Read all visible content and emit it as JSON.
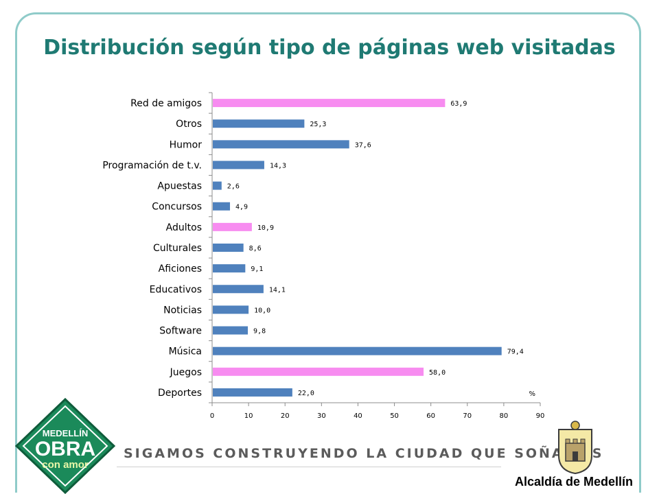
{
  "chart_data": {
    "type": "bar",
    "orientation": "horizontal",
    "title": "Distribución según tipo de páginas web visitadas",
    "categories": [
      "Red de amigos",
      "Otros",
      "Humor",
      "Programación de t.v.",
      "Apuestas",
      "Concursos",
      "Adultos",
      "Culturales",
      "Aficiones",
      "Educativos",
      "Noticias",
      "Software",
      "Música",
      "Juegos",
      "Deportes"
    ],
    "values": [
      63.9,
      25.3,
      37.6,
      14.3,
      2.6,
      4.9,
      10.9,
      8.6,
      9.1,
      14.1,
      10.0,
      9.8,
      79.4,
      58.0,
      22.0
    ],
    "value_labels": [
      "63,9",
      "25,3",
      "37,6",
      "14,3",
      "2,6",
      "4,9",
      "10,9",
      "8,6",
      "9,1",
      "14,1",
      "10,0",
      "9,8",
      "79,4",
      "58,0",
      "22,0"
    ],
    "highlighted": [
      "Red de amigos",
      "Adultos",
      "Juegos"
    ],
    "xlim": [
      0,
      90
    ],
    "xticks": [
      "0",
      "10",
      "20",
      "30",
      "40",
      "50",
      "60",
      "70",
      "80",
      "90"
    ],
    "unit_label": "%",
    "colors": {
      "default": "#4f81bd",
      "highlight": "#f78cf0"
    },
    "grid": false,
    "legend": "none"
  },
  "footer": {
    "logo": {
      "line1": "MEDELLÍN",
      "line2": "OBRA",
      "line3": "con amor"
    },
    "slogan": "SIGAMOS CONSTRUYENDO LA CIUDAD QUE SOÑAMOS",
    "institution": "Alcaldía de Medellín"
  },
  "colors": {
    "frame": "#8fcbc9",
    "title": "#1f7a73",
    "logo_green": "#1b8a5a"
  }
}
